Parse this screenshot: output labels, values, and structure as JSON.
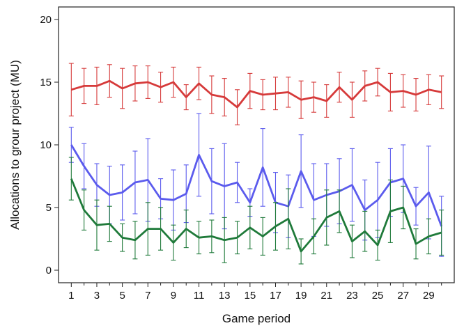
{
  "chart_data": {
    "type": "line",
    "xlabel": "Game period",
    "ylabel": "Allocations to grour project (MU)",
    "xlim": [
      0,
      31
    ],
    "ylim": [
      -1,
      21
    ],
    "x_ticks": [
      1,
      3,
      5,
      7,
      9,
      11,
      13,
      15,
      17,
      19,
      21,
      23,
      25,
      27,
      29
    ],
    "y_ticks": [
      0,
      5,
      10,
      15,
      20
    ],
    "grid": false,
    "x": [
      1,
      2,
      3,
      4,
      5,
      6,
      7,
      8,
      9,
      10,
      11,
      12,
      13,
      14,
      15,
      16,
      17,
      18,
      19,
      20,
      21,
      22,
      23,
      24,
      25,
      26,
      27,
      28,
      29,
      30
    ],
    "series": [
      {
        "color": "#d63a3a",
        "values": [
          14.4,
          14.7,
          14.7,
          15.1,
          14.5,
          14.9,
          15.0,
          14.6,
          15.0,
          13.8,
          14.9,
          14.0,
          13.8,
          13.0,
          14.3,
          14.0,
          14.1,
          14.2,
          13.6,
          13.8,
          13.5,
          14.6,
          13.6,
          14.7,
          15.0,
          14.2,
          14.3,
          14.0,
          14.4,
          14.2
        ],
        "err": [
          2.1,
          1.4,
          1.5,
          1.3,
          1.6,
          1.4,
          1.3,
          1.2,
          1.2,
          1.0,
          1.3,
          1.5,
          1.5,
          1.4,
          1.4,
          1.2,
          1.3,
          1.2,
          1.5,
          1.2,
          1.3,
          1.2,
          1.4,
          1.2,
          1.1,
          1.5,
          1.3,
          1.3,
          1.2,
          1.3
        ]
      },
      {
        "color": "#5b5bed",
        "values": [
          10.0,
          8.3,
          6.8,
          6.0,
          6.2,
          7.0,
          7.2,
          5.7,
          5.6,
          6.1,
          9.2,
          7.1,
          6.7,
          7.0,
          5.4,
          8.2,
          5.4,
          5.1,
          7.9,
          5.6,
          6.0,
          6.3,
          6.8,
          4.8,
          5.6,
          7.0,
          7.3,
          5.1,
          6.2,
          3.5
        ],
        "err": [
          1.4,
          1.8,
          1.7,
          2.3,
          2.2,
          2.5,
          3.3,
          1.6,
          2.4,
          2.3,
          3.3,
          2.6,
          3.4,
          1.6,
          1.1,
          3.1,
          2.4,
          2.5,
          2.9,
          2.9,
          2.5,
          2.6,
          2.9,
          2.4,
          3.0,
          2.7,
          2.7,
          1.5,
          3.7,
          2.4
        ]
      },
      {
        "color": "#1f7a3a",
        "values": [
          7.3,
          4.8,
          3.6,
          3.7,
          2.6,
          2.4,
          3.3,
          3.3,
          2.2,
          3.3,
          2.6,
          2.7,
          2.4,
          2.6,
          3.4,
          2.7,
          3.5,
          4.1,
          1.5,
          2.7,
          4.2,
          4.7,
          2.3,
          3.1,
          2.0,
          4.7,
          5.0,
          2.1,
          2.7,
          3.0
        ],
        "err": [
          1.7,
          1.6,
          2.0,
          1.4,
          1.1,
          1.5,
          2.1,
          1.7,
          1.4,
          1.5,
          1.3,
          1.3,
          1.8,
          1.3,
          1.7,
          1.5,
          1.9,
          2.4,
          1.0,
          1.4,
          2.2,
          1.7,
          1.3,
          1.6,
          1.2,
          2.5,
          1.7,
          1.2,
          1.4,
          1.8
        ]
      }
    ]
  }
}
